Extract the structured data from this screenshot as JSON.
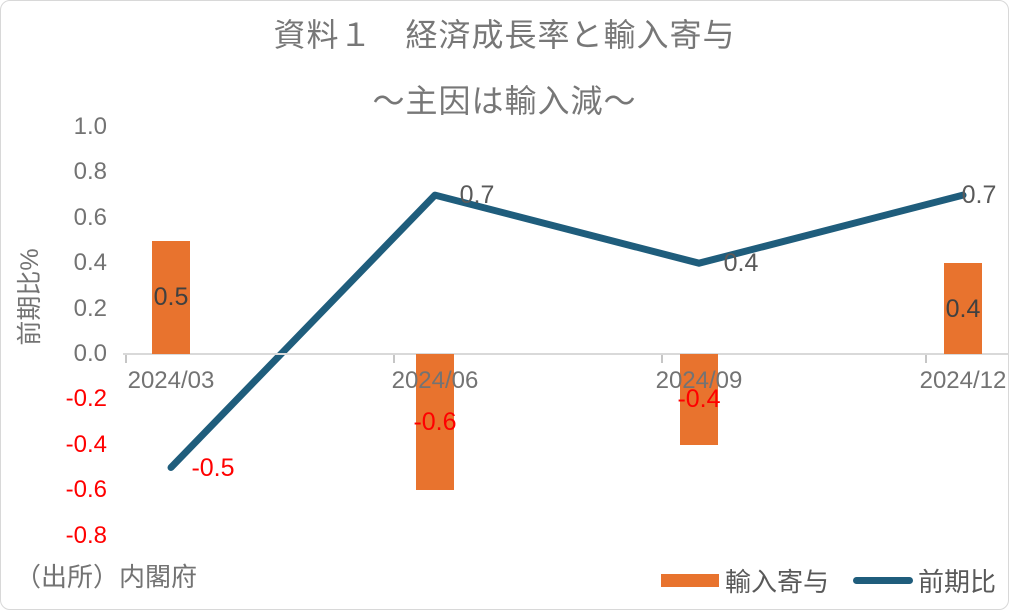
{
  "chart_data": {
    "type": "combo_bar_line",
    "title": "資料１　経済成長率と輸入寄与",
    "subtitle": "～主因は輸入減～",
    "ylabel": "前期比%",
    "source_note": "（出所）内閣府",
    "categories": [
      "2024/03",
      "2024/06",
      "2024/09",
      "2024/12"
    ],
    "series": [
      {
        "name": "輸入寄与",
        "type": "bar",
        "color": "#E8732E",
        "values": [
          0.5,
          -0.6,
          -0.4,
          0.4
        ],
        "labels": [
          "0.5",
          "-0.6",
          "-0.4",
          "0.4"
        ]
      },
      {
        "name": "前期比",
        "type": "line",
        "color": "#1F5D7C",
        "values": [
          -0.5,
          0.7,
          0.4,
          0.7
        ],
        "labels": [
          "-0.5",
          "0.7",
          "0.4",
          "0.7"
        ]
      }
    ],
    "ylim": [
      -0.8,
      1.0
    ],
    "ytick_step": 0.2,
    "ytick_labels": [
      "1.0",
      "0.8",
      "0.6",
      "0.4",
      "0.2",
      "0.0",
      "-0.2",
      "-0.4",
      "-0.6",
      "-0.8"
    ],
    "grid": false,
    "legend_position": "bottom-right",
    "colors": {
      "negative_text": "#FF0000",
      "axis_text": "#737373",
      "bar_label": "#404040",
      "line_label": "#595959",
      "axis_line": "#D9D9D9",
      "title_text": "#777777"
    }
  }
}
